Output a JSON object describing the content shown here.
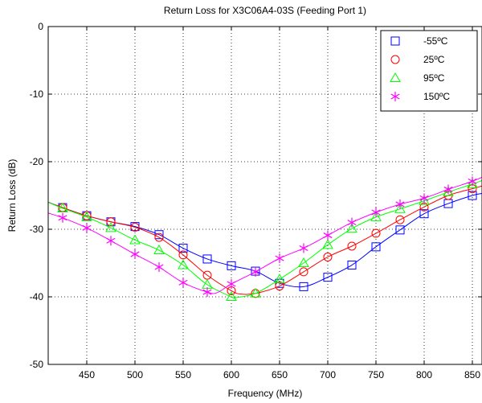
{
  "chart_data": {
    "type": "line",
    "title": "Return Loss for X3C06A4-03S (Feeding Port 1)",
    "xlabel": "Frequency (MHz)",
    "ylabel": "Return Loss (dB)",
    "xlim": [
      410,
      860
    ],
    "ylim": [
      -50,
      0
    ],
    "xticks": [
      450,
      500,
      550,
      600,
      650,
      700,
      750,
      800,
      850
    ],
    "yticks": [
      0,
      -10,
      -20,
      -30,
      -40,
      -50
    ],
    "grid": true,
    "legend_position": "top-right",
    "series": [
      {
        "name": "-55ºC",
        "color": "#0000ff",
        "marker": "square",
        "x": [
          425,
          450,
          475,
          500,
          525,
          550,
          575,
          600,
          625,
          650,
          675,
          700,
          725,
          750,
          775,
          800,
          825,
          850
        ],
        "y": [
          -26.8,
          -28.0,
          -28.9,
          -29.6,
          -30.8,
          -32.8,
          -34.4,
          -35.4,
          -36.2,
          -38.0,
          -38.5,
          -37.1,
          -35.3,
          -32.6,
          -30.1,
          -27.7,
          -26.2,
          -25.0
        ],
        "curve_x": [
          410,
          425,
          450,
          475,
          500,
          525,
          550,
          575,
          600,
          625,
          650,
          675,
          700,
          725,
          750,
          775,
          800,
          825,
          850,
          860
        ],
        "curve_y": [
          -26.0,
          -26.8,
          -28.0,
          -28.9,
          -29.6,
          -30.8,
          -32.8,
          -34.4,
          -35.4,
          -36.2,
          -38.0,
          -38.5,
          -37.1,
          -35.3,
          -32.6,
          -30.1,
          -27.7,
          -26.2,
          -25.0,
          -24.7
        ]
      },
      {
        "name": "25ºC",
        "color": "#ff0000",
        "marker": "circle",
        "x": [
          425,
          450,
          475,
          500,
          525,
          550,
          575,
          600,
          625,
          650,
          675,
          700,
          725,
          750,
          775,
          800,
          825,
          850
        ],
        "y": [
          -26.8,
          -28.0,
          -28.9,
          -29.7,
          -31.2,
          -33.8,
          -36.8,
          -39.1,
          -39.5,
          -38.4,
          -36.3,
          -34.1,
          -32.5,
          -30.6,
          -28.6,
          -26.7,
          -25.0,
          -24.0
        ],
        "curve_x": [
          410,
          425,
          450,
          475,
          500,
          525,
          550,
          575,
          600,
          610,
          625,
          650,
          675,
          700,
          725,
          750,
          775,
          800,
          825,
          850,
          860
        ],
        "curve_y": [
          -26.0,
          -26.8,
          -28.0,
          -28.9,
          -29.7,
          -31.2,
          -33.8,
          -36.8,
          -39.1,
          -39.6,
          -39.5,
          -38.4,
          -36.3,
          -34.1,
          -32.5,
          -30.6,
          -28.6,
          -26.7,
          -25.0,
          -24.0,
          -23.6
        ]
      },
      {
        "name": "95ºC",
        "color": "#00ff00",
        "marker": "triangle",
        "x": [
          425,
          450,
          475,
          500,
          525,
          550,
          575,
          600,
          625,
          650,
          675,
          700,
          725,
          750,
          775,
          800,
          825,
          850
        ],
        "y": [
          -26.9,
          -28.2,
          -29.8,
          -31.6,
          -33.1,
          -35.3,
          -38.2,
          -40.0,
          -39.5,
          -37.4,
          -35.0,
          -32.3,
          -29.9,
          -28.2,
          -27.0,
          -25.8,
          -24.5,
          -23.3
        ],
        "curve_x": [
          410,
          425,
          450,
          475,
          500,
          525,
          550,
          575,
          600,
          605,
          625,
          650,
          675,
          700,
          725,
          750,
          775,
          800,
          825,
          850,
          860
        ],
        "curve_y": [
          -26.0,
          -26.9,
          -28.2,
          -29.8,
          -31.6,
          -33.1,
          -35.3,
          -38.2,
          -40.0,
          -40.1,
          -39.5,
          -37.4,
          -35.0,
          -32.3,
          -29.9,
          -28.2,
          -27.0,
          -25.8,
          -24.5,
          -23.3,
          -22.8
        ]
      },
      {
        "name": "150ºC",
        "color": "#ff00ff",
        "marker": "star",
        "x": [
          425,
          450,
          475,
          500,
          525,
          550,
          575,
          600,
          625,
          650,
          675,
          700,
          725,
          750,
          775,
          800,
          825,
          850
        ],
        "y": [
          -28.3,
          -29.8,
          -31.7,
          -33.7,
          -35.6,
          -37.9,
          -39.3,
          -38.1,
          -36.3,
          -34.3,
          -32.8,
          -30.9,
          -29.0,
          -27.5,
          -26.3,
          -25.4,
          -24.1,
          -22.9
        ],
        "curve_x": [
          410,
          425,
          450,
          475,
          500,
          525,
          550,
          575,
          585,
          600,
          625,
          650,
          675,
          700,
          725,
          750,
          775,
          800,
          825,
          850,
          860
        ],
        "curve_y": [
          -27.6,
          -28.3,
          -29.8,
          -31.7,
          -33.7,
          -35.6,
          -37.9,
          -39.3,
          -39.4,
          -38.1,
          -36.3,
          -34.3,
          -32.8,
          -30.9,
          -29.0,
          -27.5,
          -26.3,
          -25.4,
          -24.1,
          -22.9,
          -22.3
        ]
      }
    ]
  }
}
